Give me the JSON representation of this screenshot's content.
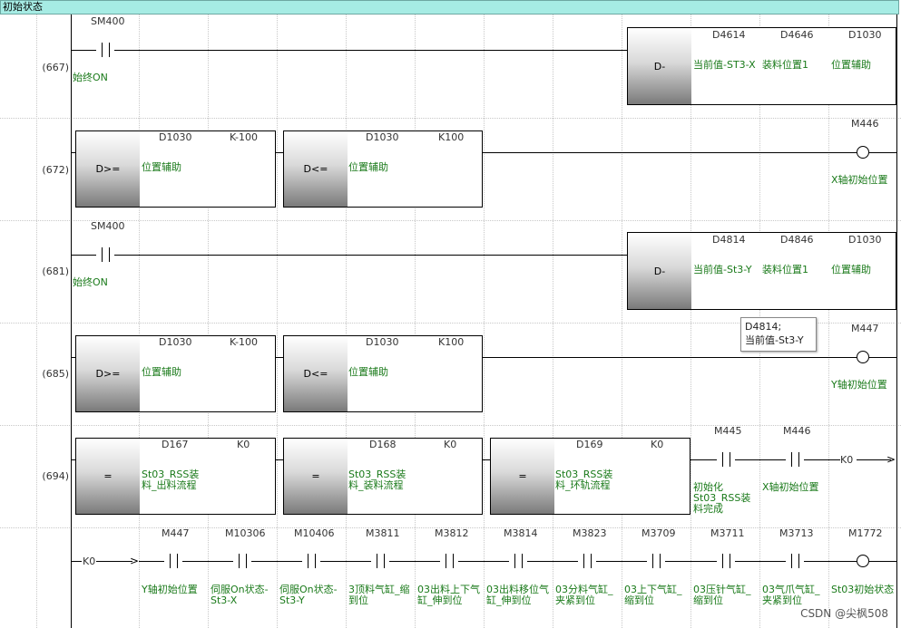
{
  "title": "初始状态",
  "watermark": "CSDN @尖枫508",
  "tooltip": {
    "line1": "D4814;",
    "line2": "当前值-St3-Y"
  },
  "rungs": {
    "r1": {
      "step": "(667)",
      "contact": "SM400",
      "contact_comment": "始终ON",
      "op": "D-",
      "o1": "D4614",
      "o2": "D4646",
      "o3": "D1030",
      "c1": "当前值-ST3-X",
      "c2": "装料位置1",
      "c3": "位置辅助"
    },
    "r2": {
      "step": "(672)",
      "a_op": "D>=",
      "a_s1": "D1030",
      "a_s2": "K-100",
      "a_c1": "位置辅助",
      "b_op": "D<=",
      "b_s1": "D1030",
      "b_s2": "K100",
      "b_c1": "位置辅助",
      "coil": "M446",
      "coil_comment": "X轴初始位置"
    },
    "r3": {
      "step": "(681)",
      "contact": "SM400",
      "contact_comment": "始终ON",
      "op": "D-",
      "o1": "D4814",
      "o2": "D4846",
      "o3": "D1030",
      "c1": "当前值-St3-Y",
      "c2": "装料位置1",
      "c3": "位置辅助"
    },
    "r4": {
      "step": "(685)",
      "a_op": "D>=",
      "a_s1": "D1030",
      "a_s2": "K-100",
      "a_c1": "位置辅助",
      "b_op": "D<=",
      "b_s1": "D1030",
      "b_s2": "K100",
      "b_c1": "位置辅助",
      "coil": "M447",
      "coil_comment": "Y轴初始位置"
    },
    "r5": {
      "step": "(694)",
      "a_op": "=",
      "a_s1": "D167",
      "a_s2": "K0",
      "a_c1": "St03_RSS装料_出料流程",
      "b_op": "=",
      "b_s1": "D168",
      "b_s2": "K0",
      "b_c1": "St03_RSS装料_装料流程",
      "c_op": "=",
      "c_s1": "D169",
      "c_s2": "K0",
      "c_c1": "St03_RSS装料_环轨流程",
      "k1": "M445",
      "k1_comment": "初始化St03_RSS装料完成",
      "k2": "M446",
      "k2_comment": "X轴初始位置",
      "jump": "K0"
    },
    "r6": {
      "jump": "K0",
      "contacts": [
        {
          "dev": "M447",
          "cmt": "Y轴初始位置"
        },
        {
          "dev": "M10306",
          "cmt": "伺服On状态-St3-X"
        },
        {
          "dev": "M10406",
          "cmt": "伺服On状态-St3-Y"
        },
        {
          "dev": "M3811",
          "cmt": "3顶料气缸_缩到位"
        },
        {
          "dev": "M3812",
          "cmt": "03出料上下气缸_伸到位"
        },
        {
          "dev": "M3814",
          "cmt": "03出料移位气缸_伸到位"
        },
        {
          "dev": "M3823",
          "cmt": "03分料气缸_夹紧到位"
        },
        {
          "dev": "M3709",
          "cmt": "03上下气缸_缩到位"
        },
        {
          "dev": "M3711",
          "cmt": "03压针气缸_缩到位"
        },
        {
          "dev": "M3713",
          "cmt": "03气爪气缸_夹紧到位"
        }
      ],
      "coil": "M1772",
      "coil_comment": "St03初始状态"
    }
  }
}
